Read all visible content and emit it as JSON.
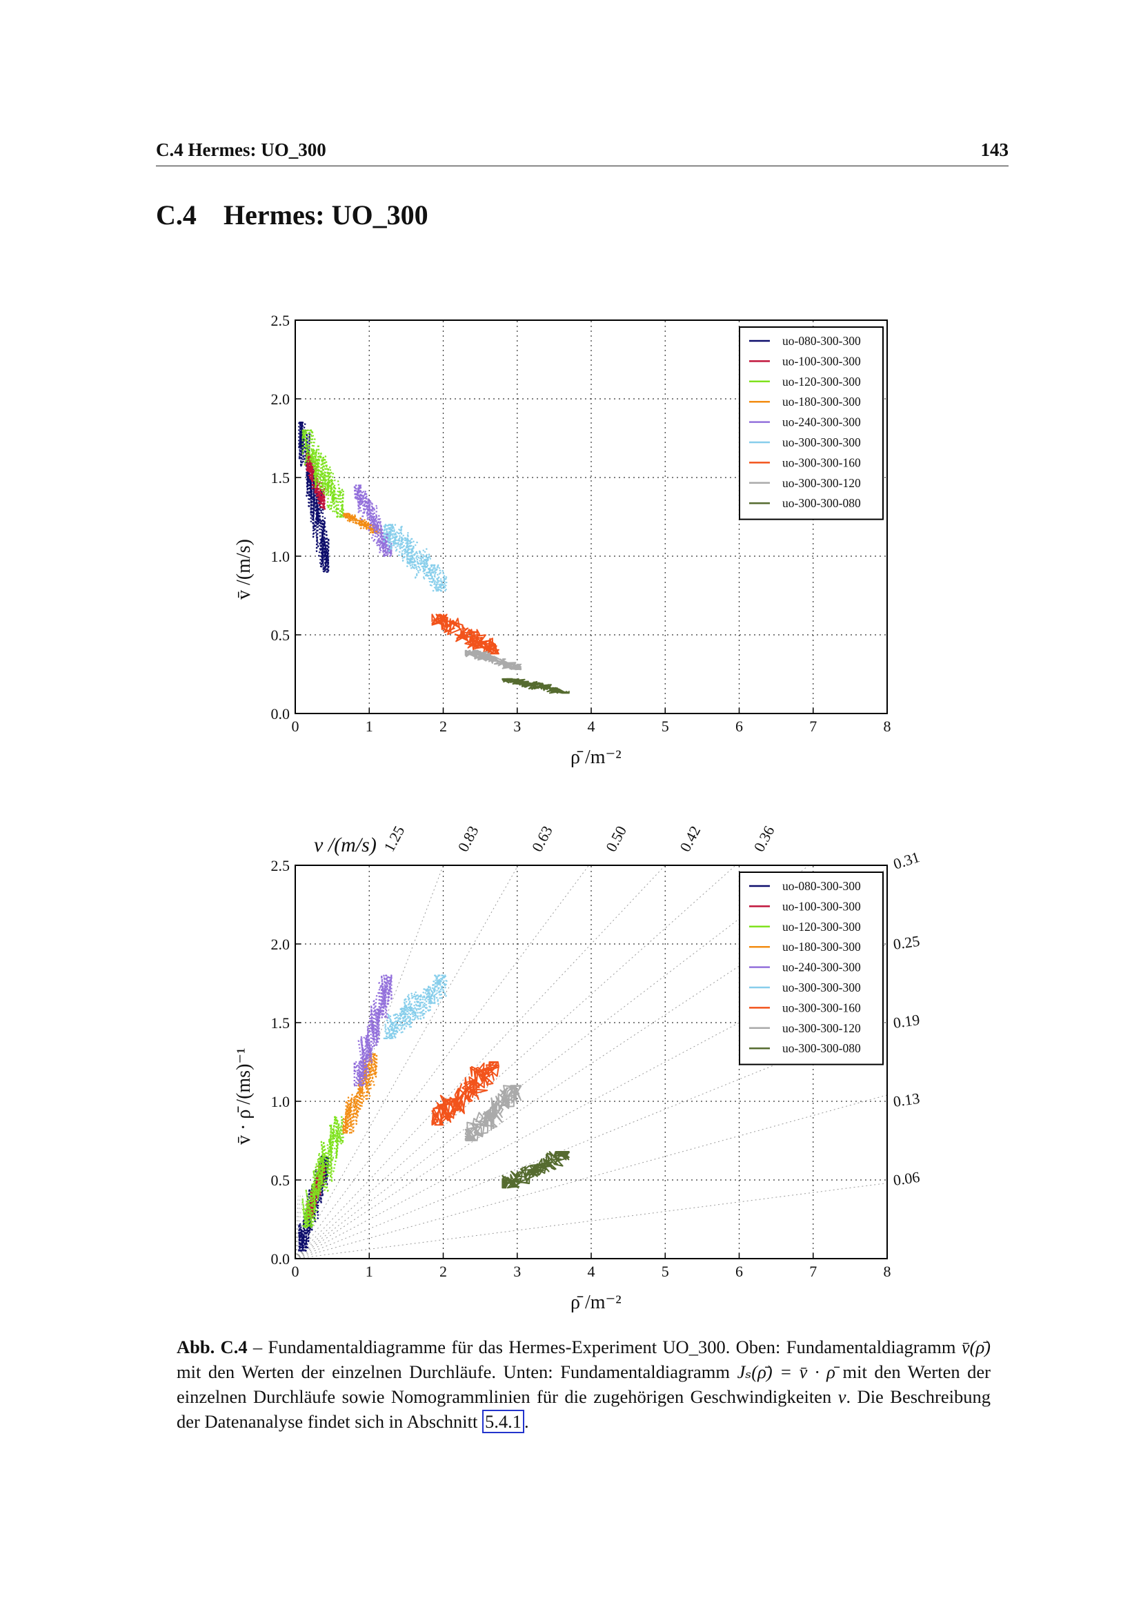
{
  "header": {
    "running_title": "C.4 Hermes: UO_300",
    "page_number": "143"
  },
  "section": {
    "number": "C.4",
    "title": "Hermes: UO_300"
  },
  "legend_entries": [
    {
      "name": "uo-080-300-300",
      "color": "#0d0d6b"
    },
    {
      "name": "uo-100-300-300",
      "color": "#c0143c"
    },
    {
      "name": "uo-120-300-300",
      "color": "#7fe21e"
    },
    {
      "name": "uo-180-300-300",
      "color": "#f28c13"
    },
    {
      "name": "uo-240-300-300",
      "color": "#9370db"
    },
    {
      "name": "uo-300-300-300",
      "color": "#87ceeb"
    },
    {
      "name": "uo-300-300-160",
      "color": "#f2531b"
    },
    {
      "name": "uo-300-300-120",
      "color": "#aaaaaa"
    },
    {
      "name": "uo-300-300-080",
      "color": "#556b2f"
    }
  ],
  "chart_data": [
    {
      "type": "scatter",
      "panel": "top",
      "xlabel": "ρ̄  /m⁻²",
      "ylabel": "v̄  /(m/s)",
      "xlim": [
        0,
        8
      ],
      "ylim": [
        0,
        2.5
      ],
      "x_ticks": [
        "0",
        "1",
        "2",
        "3",
        "4",
        "5",
        "6",
        "7",
        "8"
      ],
      "y_ticks": [
        "0.0",
        "0.5",
        "1.0",
        "1.5",
        "2.0",
        "2.5"
      ],
      "grid": true,
      "legend_position": "top-right",
      "series": [
        {
          "name": "uo-080-300-300",
          "color": "#0d0d6b",
          "x_range": [
            0.05,
            0.45
          ],
          "y_range": [
            0.9,
            1.85
          ]
        },
        {
          "name": "uo-100-300-300",
          "color": "#c0143c",
          "x_range": [
            0.15,
            0.4
          ],
          "y_range": [
            1.3,
            1.65
          ]
        },
        {
          "name": "uo-120-300-300",
          "color": "#7fe21e",
          "x_range": [
            0.1,
            0.65
          ],
          "y_range": [
            1.25,
            1.8
          ]
        },
        {
          "name": "uo-180-300-300",
          "color": "#f28c13",
          "x_range": [
            0.65,
            1.15
          ],
          "y_range": [
            1.15,
            1.27
          ]
        },
        {
          "name": "uo-240-300-300",
          "color": "#9370db",
          "x_range": [
            0.8,
            1.3
          ],
          "y_range": [
            1.0,
            1.45
          ]
        },
        {
          "name": "uo-300-300-300",
          "color": "#87ceeb",
          "x_range": [
            1.2,
            2.05
          ],
          "y_range": [
            0.78,
            1.2
          ]
        },
        {
          "name": "uo-300-300-160",
          "color": "#f2531b",
          "x_range": [
            1.85,
            2.75
          ],
          "y_range": [
            0.38,
            0.63
          ]
        },
        {
          "name": "uo-300-300-120",
          "color": "#aaaaaa",
          "x_range": [
            2.3,
            3.05
          ],
          "y_range": [
            0.28,
            0.4
          ]
        },
        {
          "name": "uo-300-300-080",
          "color": "#556b2f",
          "x_range": [
            2.8,
            3.7
          ],
          "y_range": [
            0.13,
            0.22
          ]
        }
      ]
    },
    {
      "type": "scatter",
      "panel": "bottom",
      "xlabel": "ρ̄  /m⁻²",
      "ylabel": "v̄ · ρ̄  /(ms)⁻¹",
      "top_label": "v  /(m/s)",
      "xlim": [
        0,
        8
      ],
      "ylim": [
        0,
        2.5
      ],
      "x_ticks": [
        "0",
        "1",
        "2",
        "3",
        "4",
        "5",
        "6",
        "7",
        "8"
      ],
      "y_ticks": [
        "0.0",
        "0.5",
        "1.0",
        "1.5",
        "2.0",
        "2.5"
      ],
      "grid": true,
      "legend_position": "top-right",
      "nomogram_speeds_top": [
        "1.25",
        "0.83",
        "0.63",
        "0.50",
        "0.42",
        "0.36",
        "0.31"
      ],
      "nomogram_speeds_right": [
        "0.25",
        "0.19",
        "0.13",
        "0.06"
      ],
      "series": [
        {
          "name": "uo-080-300-300",
          "color": "#0d0d6b",
          "x_range": [
            0.05,
            0.45
          ],
          "y_range": [
            0.05,
            0.65
          ]
        },
        {
          "name": "uo-100-300-300",
          "color": "#c0143c",
          "x_range": [
            0.15,
            0.4
          ],
          "y_range": [
            0.25,
            0.6
          ]
        },
        {
          "name": "uo-120-300-300",
          "color": "#7fe21e",
          "x_range": [
            0.1,
            0.65
          ],
          "y_range": [
            0.2,
            0.9
          ]
        },
        {
          "name": "uo-180-300-300",
          "color": "#f28c13",
          "x_range": [
            0.65,
            1.1
          ],
          "y_range": [
            0.8,
            1.3
          ]
        },
        {
          "name": "uo-240-300-300",
          "color": "#9370db",
          "x_range": [
            0.8,
            1.3
          ],
          "y_range": [
            1.1,
            1.8
          ]
        },
        {
          "name": "uo-300-300-300",
          "color": "#87ceeb",
          "x_range": [
            1.2,
            2.05
          ],
          "y_range": [
            1.4,
            1.8
          ]
        },
        {
          "name": "uo-300-300-160",
          "color": "#f2531b",
          "x_range": [
            1.85,
            2.75
          ],
          "y_range": [
            0.85,
            1.25
          ]
        },
        {
          "name": "uo-300-300-120",
          "color": "#aaaaaa",
          "x_range": [
            2.3,
            3.05
          ],
          "y_range": [
            0.75,
            1.1
          ]
        },
        {
          "name": "uo-300-300-080",
          "color": "#556b2f",
          "x_range": [
            2.8,
            3.7
          ],
          "y_range": [
            0.45,
            0.68
          ]
        }
      ]
    }
  ],
  "caption": {
    "label": "Abb. C.4",
    "dash": " – ",
    "text1": "Fundamentaldiagramme für das Hermes-Experiment UO_300. Oben: Fundamentaldiagramm ",
    "math1": "v̄(ρ̄)",
    "text2": " mit den Werten der einzelnen Durchläufe. Unten: Fundamentaldiagramm ",
    "math2": "Jₛ(ρ̄) = v̄ · ρ̄",
    "text3": " mit den Werten der einzelnen Durchläufe sowie Nomogrammlinien für die zugehörigen Geschwindigkeiten ",
    "math3": "v",
    "text4": ". Die Beschreibung der Datenanalyse findet sich in Abschnitt ",
    "ref": "5.4.1",
    "text5": "."
  }
}
